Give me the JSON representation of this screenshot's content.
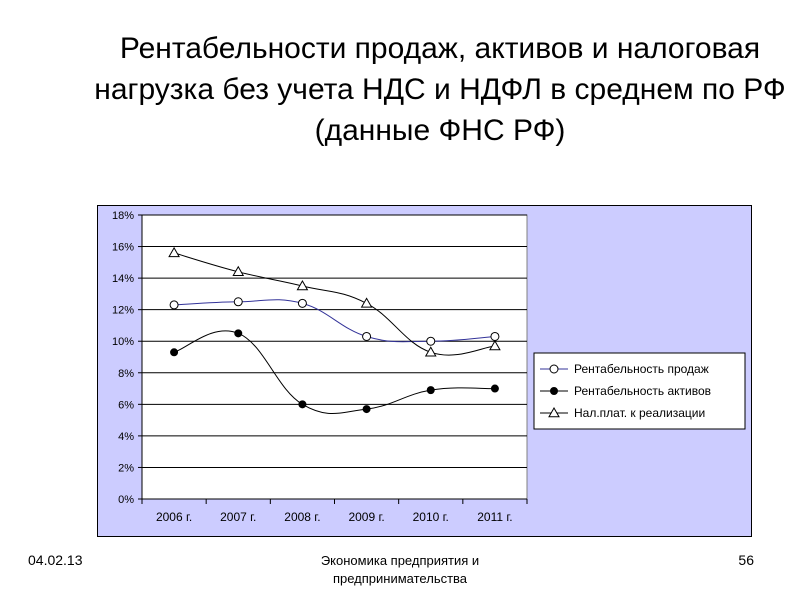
{
  "slide": {
    "title": "Рентабельности продаж, активов и налоговая нагрузка без учета НДС и НДФЛ в среднем по РФ (данные ФНС РФ)",
    "footer_date": "04.02.13",
    "footer_center": "Экономика предприятия и предпринимательства",
    "page_number": "56"
  },
  "chart_data": {
    "type": "line",
    "title": "",
    "xlabel": "",
    "ylabel": "",
    "categories": [
      "2006 г.",
      "2007 г.",
      "2008 г.",
      "2009 г.",
      "2010 г.",
      "2011 г."
    ],
    "ylim": [
      0,
      18
    ],
    "yticks": [
      0,
      2,
      4,
      6,
      8,
      10,
      12,
      14,
      16,
      18
    ],
    "ytick_labels": [
      "0%",
      "2%",
      "4%",
      "6%",
      "8%",
      "10%",
      "12%",
      "14%",
      "16%",
      "18%"
    ],
    "grid": true,
    "legend_position": "right",
    "plot_background": "#ccccff",
    "outer_background": "#ffffff",
    "series": [
      {
        "name": "Рентабельность продаж",
        "values": [
          12.3,
          12.5,
          12.4,
          10.3,
          10.0,
          10.3
        ],
        "marker": "circle-open",
        "color": "#333399"
      },
      {
        "name": "Рентабельность активов",
        "values": [
          9.3,
          10.5,
          6.0,
          5.7,
          6.9,
          7.0
        ],
        "marker": "circle-filled",
        "color": "#000000"
      },
      {
        "name": "Нал.плат. к реализации",
        "values": [
          15.6,
          14.4,
          13.5,
          12.4,
          9.3,
          9.7
        ],
        "marker": "triangle-open",
        "color": "#000000"
      }
    ]
  }
}
